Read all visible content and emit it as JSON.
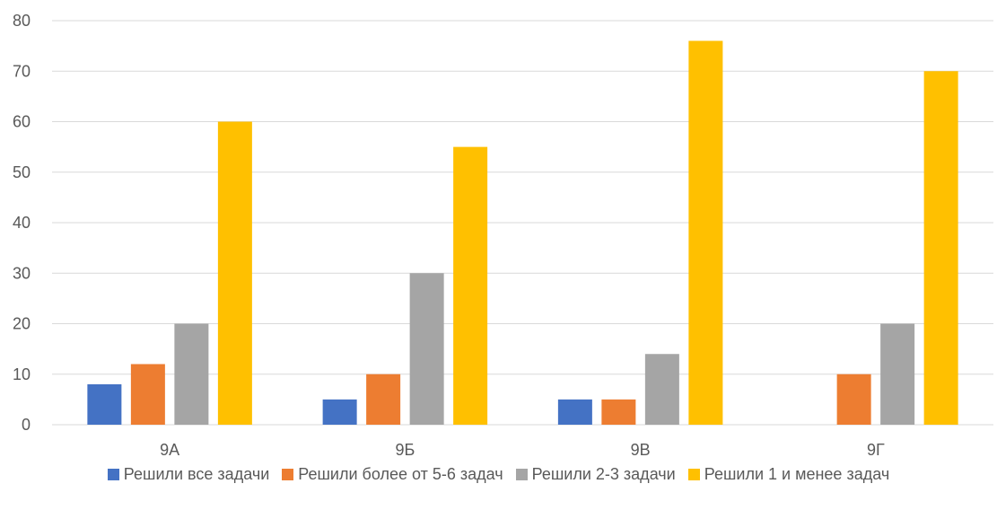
{
  "chart_data": {
    "type": "bar",
    "categories": [
      "9A",
      "9Б",
      "9В",
      "9Г"
    ],
    "series": [
      {
        "name": "Решили все задачи",
        "color": "#4472C4",
        "values": [
          8,
          5,
          5,
          0
        ]
      },
      {
        "name": "Решили более от 5-6 задач",
        "color": "#ED7D31",
        "values": [
          12,
          10,
          5,
          10
        ]
      },
      {
        "name": "Решили 2-3 задачи",
        "color": "#A5A5A5",
        "values": [
          20,
          30,
          14,
          20
        ]
      },
      {
        "name": "Решили 1 и менее задач",
        "color": "#FFC000",
        "values": [
          60,
          55,
          76,
          70
        ]
      }
    ],
    "y_ticks": [
      "0",
      "10",
      "20",
      "30",
      "40",
      "50",
      "60",
      "70",
      "80"
    ],
    "ylim": [
      0,
      80
    ],
    "grid": true,
    "legend_position": "bottom",
    "title": "",
    "xlabel": "",
    "ylabel": ""
  }
}
